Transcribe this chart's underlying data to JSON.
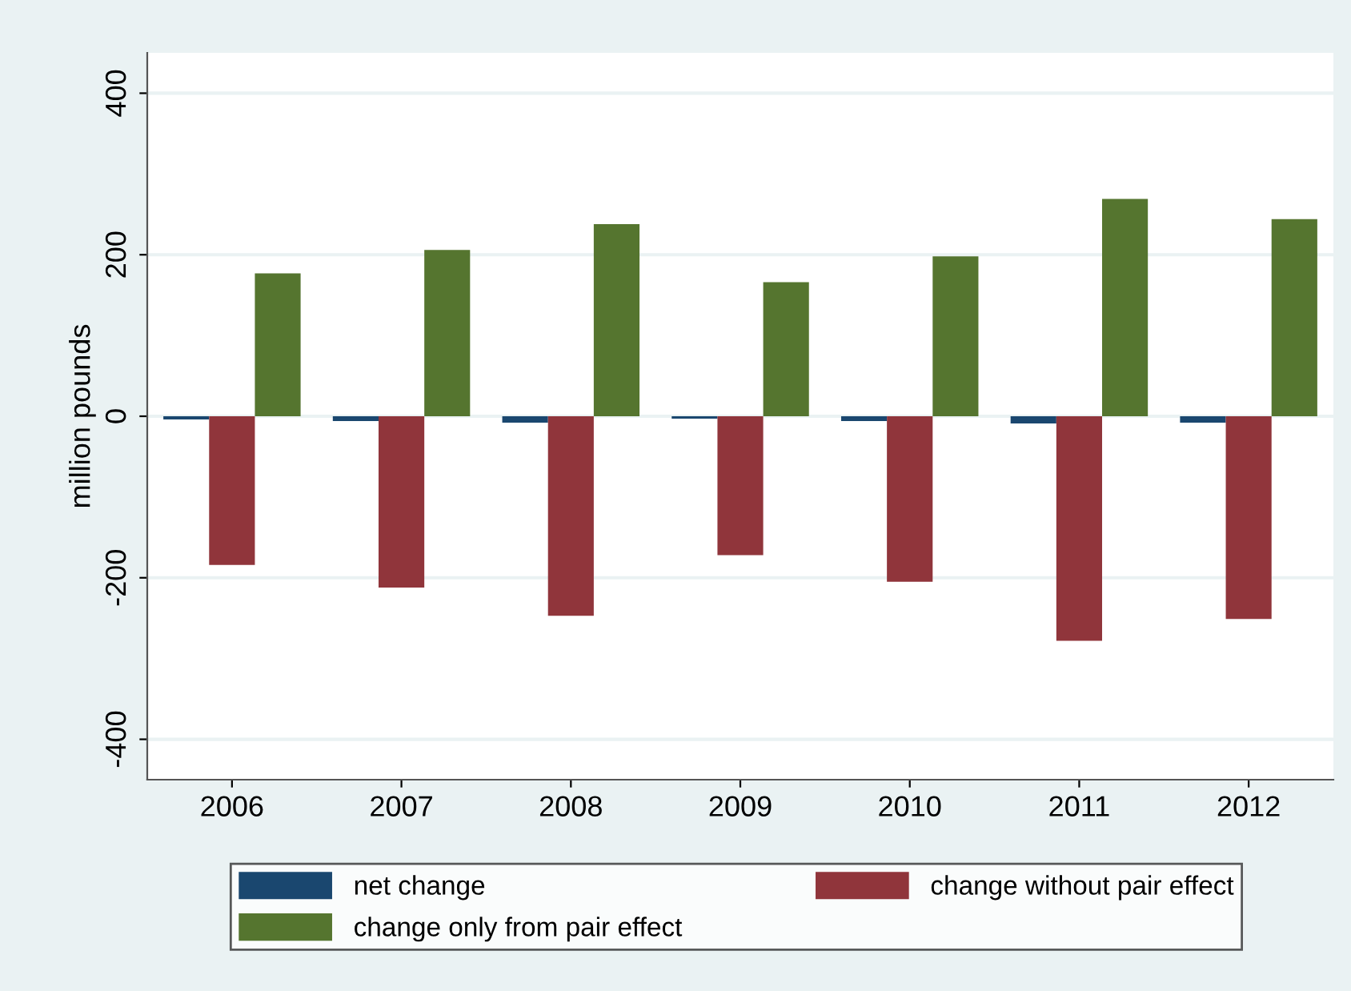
{
  "chart_data": {
    "type": "bar",
    "ylabel": "million pounds",
    "categories": [
      "2006",
      "2007",
      "2008",
      "2009",
      "2010",
      "2011",
      "2012"
    ],
    "series": [
      {
        "name": "net change",
        "color": "#1a476f",
        "values": [
          -4,
          -6,
          -8,
          -3,
          -6,
          -9,
          -8
        ]
      },
      {
        "name": "change without pair effect",
        "color": "#90353b",
        "values": [
          -184,
          -212,
          -247,
          -172,
          -205,
          -278,
          -251
        ]
      },
      {
        "name": "change only from pair effect",
        "color": "#55752f",
        "values": [
          177,
          206,
          238,
          166,
          198,
          269,
          244
        ]
      }
    ],
    "ylim": [
      -450,
      450
    ],
    "yticks": [
      -400,
      -200,
      0,
      200,
      400
    ],
    "grid": "y",
    "legend": "bottom"
  }
}
